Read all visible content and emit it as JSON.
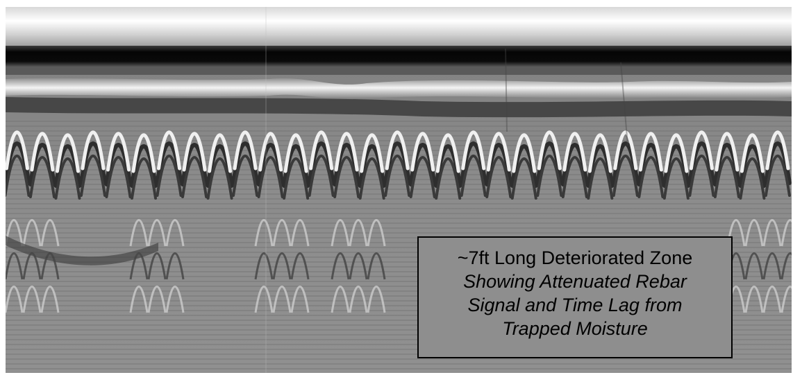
{
  "annotation": {
    "heading": "~7ft Long Deteriorated Zone",
    "detail_lines": [
      "Showing Attenuated Rebar",
      "Signal and Time Lag from",
      "Trapped Moisture"
    ]
  },
  "scan": {
    "type": "grayscale radar scan",
    "colors": {
      "background": "#8a8a8a",
      "bright_band": "#f2f2f2",
      "dark_band": "#111111",
      "border": "#000000"
    },
    "hyperbola_count": 31
  }
}
